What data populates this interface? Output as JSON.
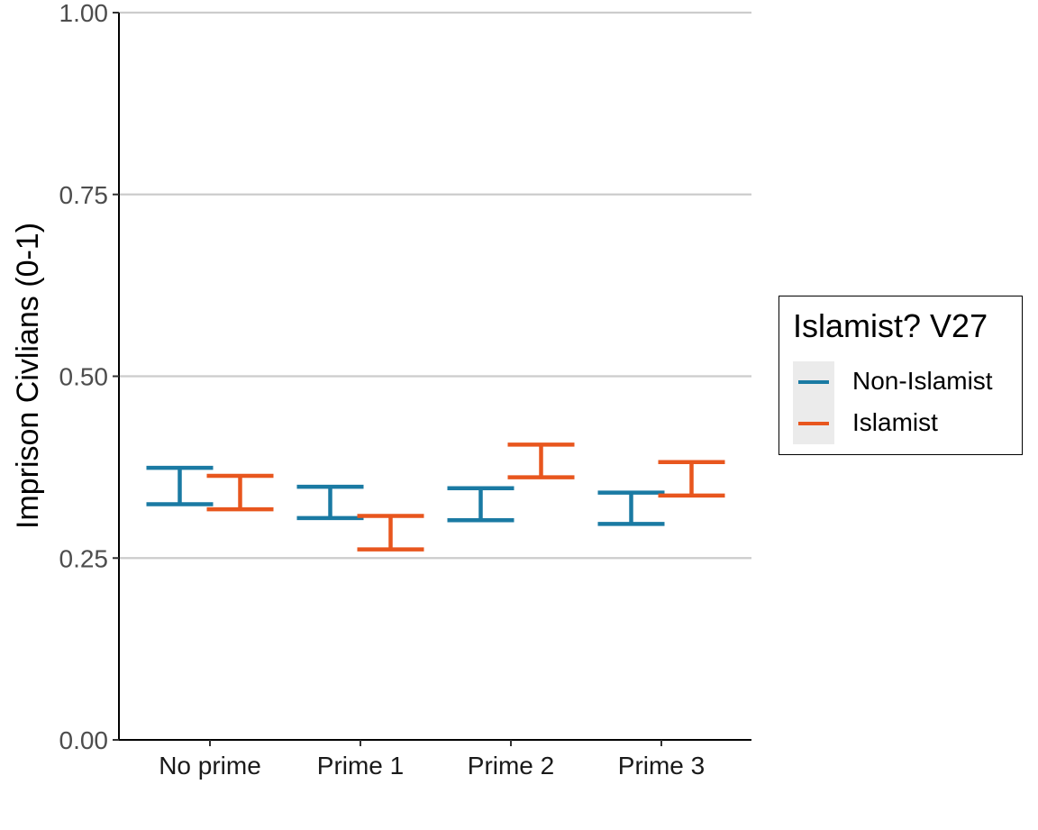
{
  "chart_data": {
    "type": "errorbar",
    "title": "",
    "xlabel": "",
    "ylabel": "Imprison Civlians (0-1)",
    "ylim": [
      0,
      1
    ],
    "yticks": [
      "0.00",
      "0.25",
      "0.50",
      "0.75",
      "1.00"
    ],
    "ytick_values": [
      0,
      0.25,
      0.5,
      0.75,
      1
    ],
    "categories": [
      "No prime",
      "Prime 1",
      "Prime 2",
      "Prime 3"
    ],
    "grid": "horizontal major",
    "legend_position": "right",
    "series": [
      {
        "name": "Non-Islamist",
        "color": "#1a7aa3",
        "lower": [
          0.324,
          0.305,
          0.302,
          0.297
        ],
        "upper": [
          0.374,
          0.348,
          0.346,
          0.34
        ]
      },
      {
        "name": "Islamist",
        "color": "#e8561e",
        "lower": [
          0.317,
          0.262,
          0.361,
          0.336
        ],
        "upper": [
          0.363,
          0.308,
          0.406,
          0.382
        ]
      }
    ]
  },
  "legend": {
    "title": "Islamist? V27",
    "items": [
      "Non-Islamist",
      "Islamist"
    ]
  }
}
